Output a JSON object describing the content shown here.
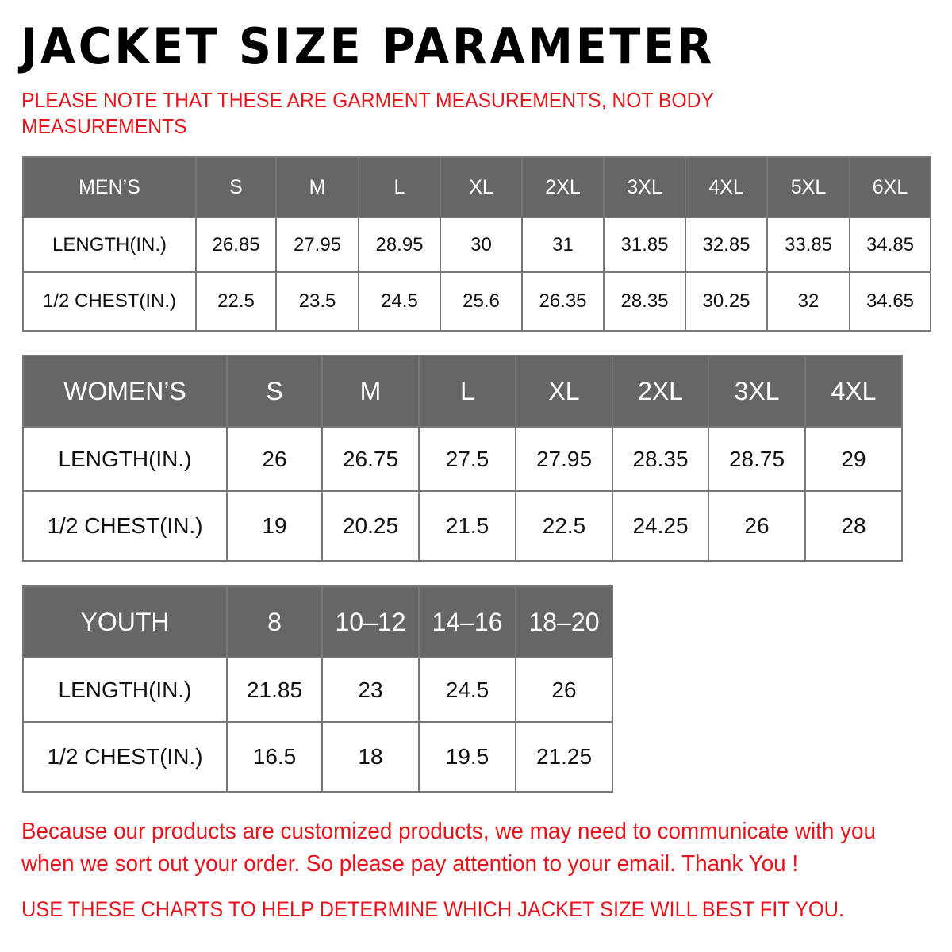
{
  "title": "JACKET  SIZE  PARAMETER",
  "note": "PLEASE NOTE THAT THESE ARE GARMENT MEASUREMENTS, NOT BODY MEASUREMENTS",
  "tables": {
    "men": {
      "header": [
        "MEN’S",
        "S",
        "M",
        "L",
        "XL",
        "2XL",
        "3XL",
        "4XL",
        "5XL",
        "6XL"
      ],
      "rows": [
        [
          "LENGTH(IN.)",
          "26.85",
          "27.95",
          "28.95",
          "30",
          "31",
          "31.85",
          "32.85",
          "33.85",
          "34.85"
        ],
        [
          "1/2 CHEST(IN.)",
          "22.5",
          "23.5",
          "24.5",
          "25.6",
          "26.35",
          "28.35",
          "30.25",
          "32",
          "34.65"
        ]
      ]
    },
    "women": {
      "header": [
        "WOMEN’S",
        "S",
        "M",
        "L",
        "XL",
        "2XL",
        "3XL",
        "4XL"
      ],
      "rows": [
        [
          "LENGTH(IN.)",
          "26",
          "26.75",
          "27.5",
          "27.95",
          "28.35",
          "28.75",
          "29"
        ],
        [
          "1/2 CHEST(IN.)",
          "19",
          "20.25",
          "21.5",
          "22.5",
          "24.25",
          "26",
          "28"
        ]
      ]
    },
    "youth": {
      "header": [
        "YOUTH",
        "8",
        "10–12",
        "14–16",
        "18–20"
      ],
      "rows": [
        [
          "LENGTH(IN.)",
          "21.85",
          "23",
          "24.5",
          "26"
        ],
        [
          "1/2 CHEST(IN.)",
          "16.5",
          "18",
          "19.5",
          "21.25"
        ]
      ]
    }
  },
  "message": "Because our products are customized products, we may need to communicate with you when we sort out your order. So please pay attention to your email. Thank You !",
  "footer": "USE THESE CHARTS TO HELP DETERMINE WHICH JACKET SIZE WILL BEST FIT YOU.",
  "colors": {
    "header_bg": "#666666",
    "accent_red": "#e8141b"
  }
}
